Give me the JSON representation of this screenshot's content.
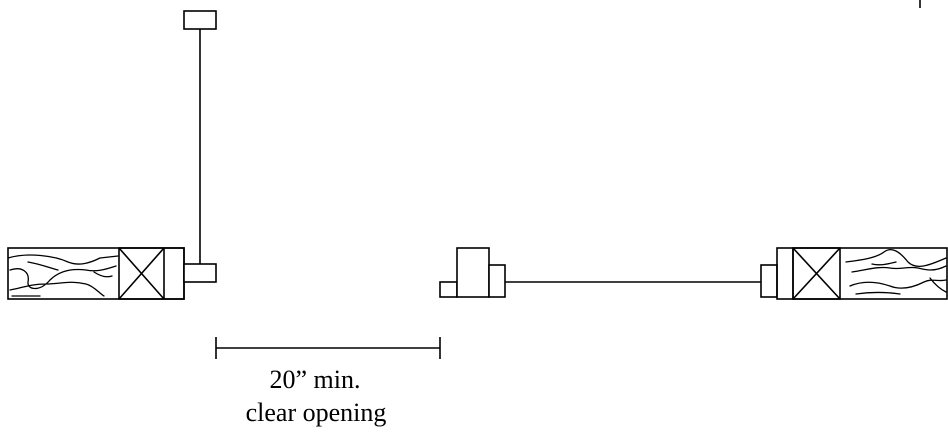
{
  "dimension": {
    "value_label": "20” min.",
    "description_label": "clear opening"
  },
  "colors": {
    "ink": "#000000",
    "background": "#ffffff"
  }
}
